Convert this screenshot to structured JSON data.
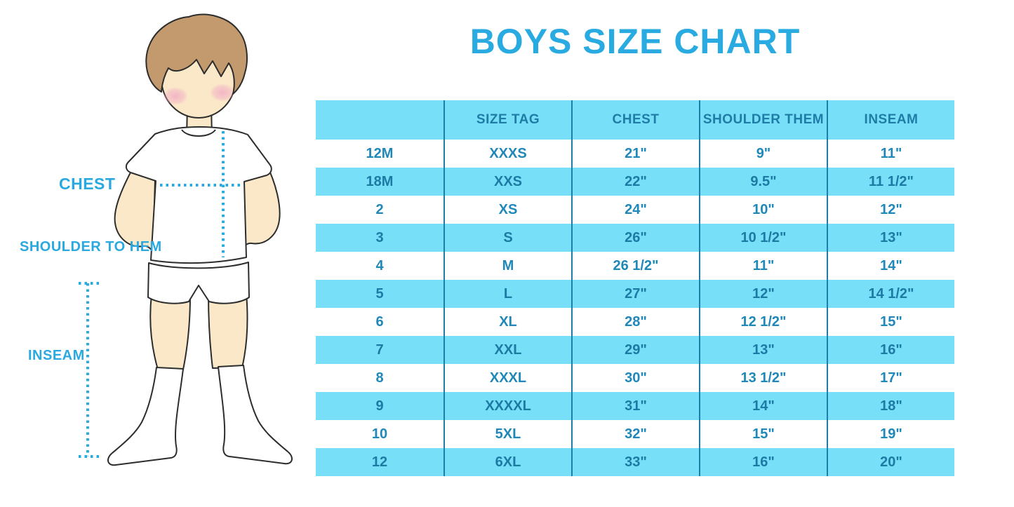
{
  "title": "BOYS SIZE CHART",
  "figure": {
    "labels": {
      "chest": "CHEST",
      "shoulder_to_hem": "SHOULDER TO HEM",
      "inseam": "INSEAM"
    }
  },
  "colors": {
    "title_blue": "#29abe2",
    "band_cyan": "#77e0f8",
    "table_text_blue": "#1f88b8",
    "table_text_on_cyan": "#1d7aa4",
    "divider_teal": "#1d7fa8",
    "label_and_dots_blue": "#29a9e0",
    "skin": "#fbe8c8",
    "hair": "#c39a6e"
  },
  "chart_data": {
    "type": "table",
    "title": "BOYS SIZE CHART",
    "columns": [
      "",
      "SIZE TAG",
      "CHEST",
      "SHOULDER THEM",
      "INSEAM"
    ],
    "rows": [
      [
        "12M",
        "XXXS",
        "21\"",
        "9\"",
        "11\""
      ],
      [
        "18M",
        "XXS",
        "22\"",
        "9.5\"",
        "11 1/2\""
      ],
      [
        "2",
        "XS",
        "24\"",
        "10\"",
        "12\""
      ],
      [
        "3",
        "S",
        "26\"",
        "10 1/2\"",
        "13\""
      ],
      [
        "4",
        "M",
        "26 1/2\"",
        "11\"",
        "14\""
      ],
      [
        "5",
        "L",
        "27\"",
        "12\"",
        "14 1/2\""
      ],
      [
        "6",
        "XL",
        "28\"",
        "12 1/2\"",
        "15\""
      ],
      [
        "7",
        "XXL",
        "29\"",
        "13\"",
        "16\""
      ],
      [
        "8",
        "XXXL",
        "30\"",
        "13 1/2\"",
        "17\""
      ],
      [
        "9",
        "XXXXL",
        "31\"",
        "14\"",
        "18\""
      ],
      [
        "10",
        "5XL",
        "32\"",
        "15\"",
        "19\""
      ],
      [
        "12",
        "6XL",
        "33\"",
        "16\"",
        "20\""
      ]
    ],
    "layout": {
      "header_band": "cyan",
      "row_bands": "alternating white and cyan starting with white",
      "grid": "vertical column dividers only",
      "legend_position": "none"
    }
  }
}
